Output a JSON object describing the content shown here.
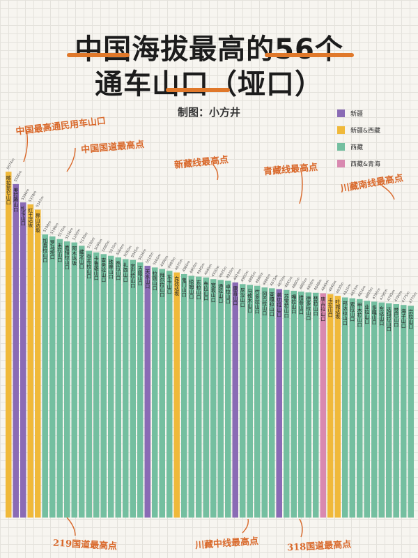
{
  "title": {
    "line1": "中国海拔最高的56个",
    "line2": "通车山口（垭口）"
  },
  "credit": "制图：小方井",
  "colors": {
    "xinjiang": "#8a6bb5",
    "xinjiang_xizang": "#f0b93a",
    "xizang": "#74bfa0",
    "xizang_qinghai": "#d989b0",
    "accent": "#e0782a"
  },
  "legend": [
    {
      "label": "新疆",
      "color": "#8a6bb5"
    },
    {
      "label": "新疆&西藏",
      "color": "#f0b93a"
    },
    {
      "label": "西藏",
      "color": "#74bfa0"
    },
    {
      "label": "西藏&青海",
      "color": "#d989b0"
    }
  ],
  "annotations": [
    {
      "key": "a1",
      "text": "中国最高通民用车山口"
    },
    {
      "key": "a2",
      "text": "中国国道最高点"
    },
    {
      "key": "a3",
      "text": "新藏线最高点"
    },
    {
      "key": "a4",
      "text": "青藏线最高点"
    },
    {
      "key": "a5",
      "text": "川藏南线最高点"
    },
    {
      "key": "a6",
      "text": "219国道最高点"
    },
    {
      "key": "a7",
      "text": "川藏中线最高点"
    },
    {
      "key": "a8",
      "text": "318国道最高点"
    }
  ],
  "chart_data": {
    "type": "bar",
    "title": "中国海拔最高的56个通车山口（垭口）",
    "bars": [
      {
        "name": "喀拉昆仑山口",
        "value": 5574,
        "region": "新疆&西藏"
      },
      {
        "name": "美拉腾山口",
        "value": 5500,
        "region": "新疆"
      },
      {
        "name": "扎卡山口",
        "value": 5390,
        "region": "新疆"
      },
      {
        "name": "红土达坂",
        "value": 5378,
        "region": "新疆&西藏"
      },
      {
        "name": "界山达坂",
        "value": 5347,
        "region": "新疆&西藏"
      },
      {
        "name": "加吾拉山口",
        "value": 5198,
        "region": "西藏"
      },
      {
        "name": "罗马垭口",
        "value": 5186,
        "region": "西藏"
      },
      {
        "name": "米拉山口",
        "value": 5170,
        "region": "西藏"
      },
      {
        "name": "嘉措拉山口",
        "value": 5156,
        "region": "西藏"
      },
      {
        "name": "阿木达坂",
        "value": 5150,
        "region": "西藏"
      },
      {
        "name": "藏北山口",
        "value": 5130,
        "region": "西藏"
      },
      {
        "name": "夺布拉山口",
        "value": 5100,
        "region": "西藏"
      },
      {
        "name": "卡鲁雄山口",
        "value": 5090,
        "region": "西藏"
      },
      {
        "name": "查务拉山口",
        "value": 5080,
        "region": "西藏"
      },
      {
        "name": "珠峰山口",
        "value": 5070,
        "region": "西藏"
      },
      {
        "name": "热拉山口",
        "value": 5060,
        "region": "西藏"
      },
      {
        "name": "扎西山口",
        "value": 5050,
        "region": "西藏"
      },
      {
        "name": "宗巴拉山口",
        "value": 5045,
        "region": "西藏"
      },
      {
        "name": "吉隆山口",
        "value": 5030,
        "region": "西藏"
      },
      {
        "name": "天水山口",
        "value": 5010,
        "region": "新疆"
      },
      {
        "name": "拉则山口",
        "value": 5000,
        "region": "西藏"
      },
      {
        "name": "拜尔拉山口",
        "value": 4990,
        "region": "西藏"
      },
      {
        "name": "东卡山口",
        "value": 4980,
        "region": "西藏"
      },
      {
        "name": "克孜达坂",
        "value": 4970,
        "region": "新疆&西藏"
      },
      {
        "name": "鬼门山口",
        "value": 4960,
        "region": "西藏"
      },
      {
        "name": "琼姆山口",
        "value": 4950,
        "region": "西藏"
      },
      {
        "name": "东拉山口",
        "value": 4945,
        "region": "西藏"
      },
      {
        "name": "布拉山口",
        "value": 4940,
        "region": "西藏"
      },
      {
        "name": "宽坂山口",
        "value": 4930,
        "region": "西藏"
      },
      {
        "name": "通拉山口",
        "value": 4925,
        "region": "西藏"
      },
      {
        "name": "卓拉山口",
        "value": 4920,
        "region": "西藏"
      },
      {
        "name": "康喜山口",
        "value": 4910,
        "region": "新疆"
      },
      {
        "name": "尼汝山口",
        "value": 4900,
        "region": "西藏"
      },
      {
        "name": "马攸木山口",
        "value": 4895,
        "region": "西藏"
      },
      {
        "name": "竹多拉山口",
        "value": 4890,
        "region": "西藏"
      },
      {
        "name": "冈巴拉山口",
        "value": 4880,
        "region": "西藏"
      },
      {
        "name": "查嘎拉山口",
        "value": 4875,
        "region": "西藏"
      },
      {
        "name": "弟切拉山口",
        "value": 4870,
        "region": "新疆"
      },
      {
        "name": "苏宝拉山口",
        "value": 4865,
        "region": "西藏"
      },
      {
        "name": "嘎拉山口",
        "value": 4860,
        "region": "西藏"
      },
      {
        "name": "措普山口",
        "value": 4855,
        "region": "西藏"
      },
      {
        "name": "德多拉山口",
        "value": 4850,
        "region": "西藏"
      },
      {
        "name": "楚拉山口",
        "value": 4848,
        "region": "西藏"
      },
      {
        "name": "唐古拉山口",
        "value": 4845,
        "region": "西藏&青海"
      },
      {
        "name": "卡拉山口",
        "value": 4840,
        "region": "新疆&西藏"
      },
      {
        "name": "叶城达坂",
        "value": 4830,
        "region": "新疆&西藏"
      },
      {
        "name": "邦达拉山口",
        "value": 4820,
        "region": "西藏"
      },
      {
        "name": "索拉山口",
        "value": 4815,
        "region": "西藏"
      },
      {
        "name": "甲木拉山口",
        "value": 4810,
        "region": "西藏"
      },
      {
        "name": "业拉山口",
        "value": 4800,
        "region": "西藏"
      },
      {
        "name": "多嘎山口",
        "value": 4795,
        "region": "西藏"
      },
      {
        "name": "东达山口",
        "value": 4790,
        "region": "西藏"
      },
      {
        "name": "达玛拉山口",
        "value": 4785,
        "region": "西藏"
      },
      {
        "name": "觉巴山口",
        "value": 4780,
        "region": "西藏"
      },
      {
        "name": "海子山口",
        "value": 4775,
        "region": "西藏"
      },
      {
        "name": "宗拉山口",
        "value": 4770,
        "region": "西藏"
      }
    ],
    "ylim": [
      3500,
      5600
    ]
  }
}
